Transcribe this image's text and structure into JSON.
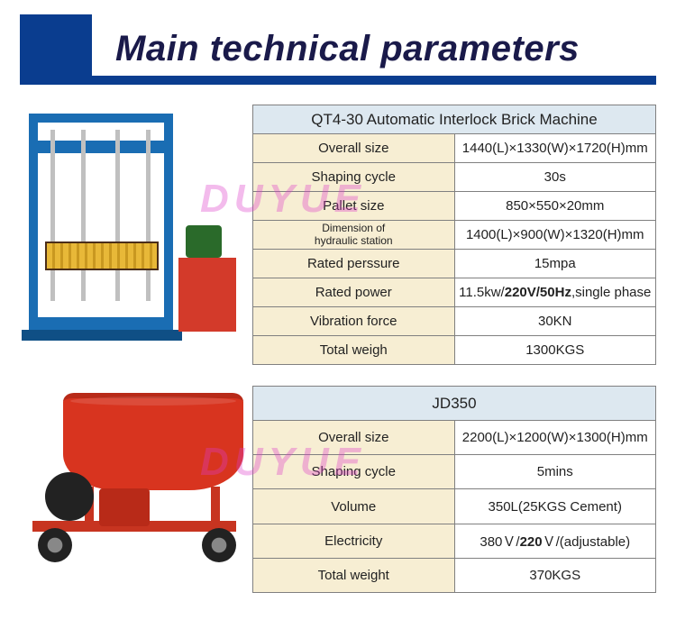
{
  "header": {
    "title": "Main technical parameters"
  },
  "watermark": "DUYUE",
  "colors": {
    "header_blue": "#0a3d8f",
    "title_color": "#1a1a4a",
    "table_header_bg": "#dde8f0",
    "label_bg": "#f7eed3",
    "value_bg": "#ffffff",
    "border": "#808080",
    "machine1_blue": "#1a6db3",
    "machine1_yellow": "#e8b838",
    "machine1_red": "#d33a2a",
    "machine2_red": "#d8341f",
    "watermark_color": "rgba(220,60,200,0.35)"
  },
  "product1": {
    "title": "QT4-30 Automatic Interlock Brick Machine",
    "rows": [
      {
        "label": "Overall size",
        "value": "1440(L)×1330(W)×1720(H)mm"
      },
      {
        "label": "Shaping cycle",
        "value": "30s"
      },
      {
        "label": "Pallet size",
        "value": "850×550×20mm"
      },
      {
        "label": "Dimension of\nhydraulic station",
        "value": "1400(L)×900(W)×1320(H)mm",
        "small": true
      },
      {
        "label": "Rated perssure",
        "value": "15mpa"
      },
      {
        "label": "Rated power",
        "value_html": "11.5kw/<b>220V/50Hz</b>,single phase"
      },
      {
        "label": "Vibration force",
        "value": "30KN"
      },
      {
        "label": "Total weigh",
        "value": "1300KGS"
      }
    ]
  },
  "product2": {
    "title": "JD350",
    "rows": [
      {
        "label": "Overall size",
        "value": "2200(L)×1200(W)×1300(H)mm"
      },
      {
        "label": "Shaping cycle",
        "value": "5mins"
      },
      {
        "label": "Volume",
        "value": "350L(25KGS Cement)"
      },
      {
        "label": "Electricity",
        "value_html": "380Ｖ/<b>220</b>Ｖ/(adjustable)"
      },
      {
        "label": "Total weight",
        "value": "370KGS"
      }
    ]
  }
}
